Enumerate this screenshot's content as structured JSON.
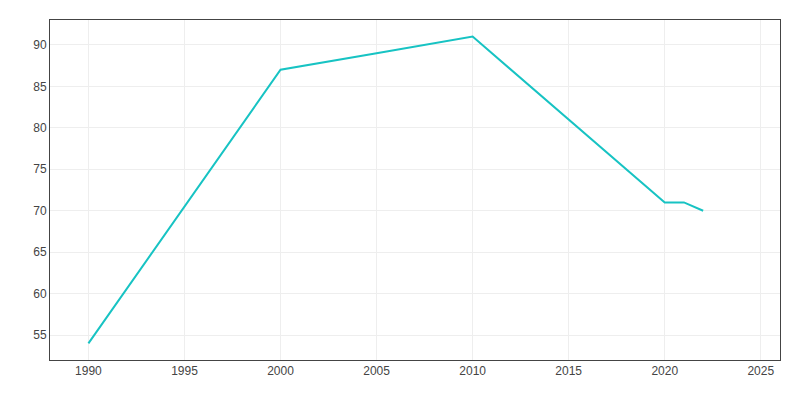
{
  "chart_data": {
    "type": "line",
    "x": [
      1990,
      2000,
      2005,
      2010,
      2020,
      2021,
      2022
    ],
    "values": [
      54,
      87,
      89,
      91,
      71,
      71,
      70
    ],
    "color": "#17C3C3",
    "xlim": [
      1988,
      2026
    ],
    "ylim": [
      52,
      93
    ],
    "xticks": [
      1990,
      1995,
      2000,
      2005,
      2010,
      2015,
      2020,
      2025
    ],
    "yticks": [
      55,
      60,
      65,
      70,
      75,
      80,
      85,
      90
    ],
    "grid": true
  }
}
